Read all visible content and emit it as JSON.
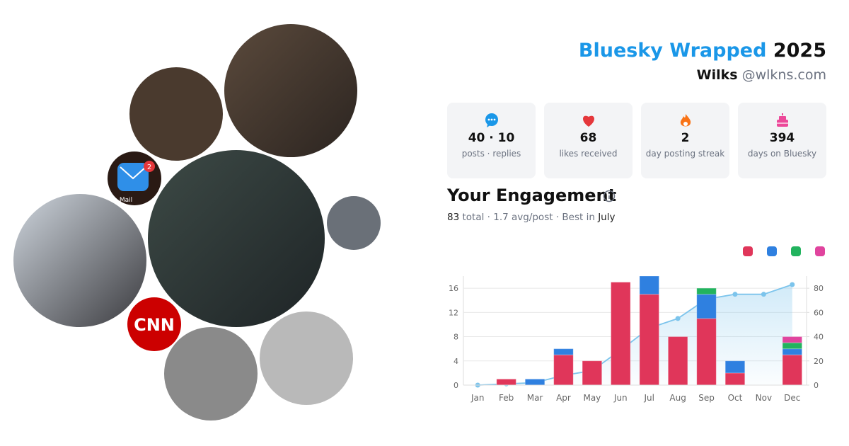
{
  "header": {
    "title_brand": "Bluesky Wrapped",
    "title_year": "2025",
    "display_name": "Wilks",
    "handle": "@wlkns.com"
  },
  "avatars": {
    "cnn_logo": "CNN",
    "mail_badge": "2",
    "mail_label": "Mail"
  },
  "stats": [
    {
      "value": "40 · 10",
      "label": "posts · replies"
    },
    {
      "value": "68",
      "label": "likes received"
    },
    {
      "value": "2",
      "label": "day posting streak"
    },
    {
      "value": "394",
      "label": "days on Bluesky"
    }
  ],
  "engagement": {
    "heading": "Your Engagement",
    "total": "83",
    "summary": "total · 1.7 avg/post · Best in",
    "best_month": "July"
  },
  "chart_data": {
    "type": "bar",
    "stacked": true,
    "grid": true,
    "categories": [
      "Jan",
      "Feb",
      "Mar",
      "Apr",
      "May",
      "Jun",
      "Jul",
      "Aug",
      "Sep",
      "Oct",
      "Nov",
      "Dec"
    ],
    "series": [
      {
        "color": "#e0365a",
        "values": [
          0,
          1,
          0,
          5,
          4,
          17,
          15,
          8,
          11,
          2,
          0,
          5
        ]
      },
      {
        "color": "#2f80e0",
        "values": [
          0,
          0,
          1,
          1,
          0,
          0,
          3,
          0,
          4,
          2,
          0,
          1
        ]
      },
      {
        "color": "#22b35e",
        "values": [
          0,
          0,
          0,
          0,
          0,
          0,
          0,
          0,
          1,
          0,
          0,
          1
        ]
      },
      {
        "color": "#e0449e",
        "values": [
          0,
          0,
          0,
          0,
          0,
          0,
          0,
          0,
          0,
          0,
          0,
          1
        ]
      },
      {
        "type": "area",
        "axis": "y2",
        "color": "#7cc4ec",
        "values": [
          0,
          1,
          2,
          8,
          12,
          29,
          47,
          55,
          71,
          75,
          75,
          83
        ]
      }
    ],
    "ylim": [
      0,
      18
    ],
    "yticks": [
      0,
      4,
      8,
      12,
      16
    ],
    "y2lim": [
      0,
      90
    ],
    "y2ticks": [
      0,
      20,
      40,
      60,
      80
    ]
  }
}
